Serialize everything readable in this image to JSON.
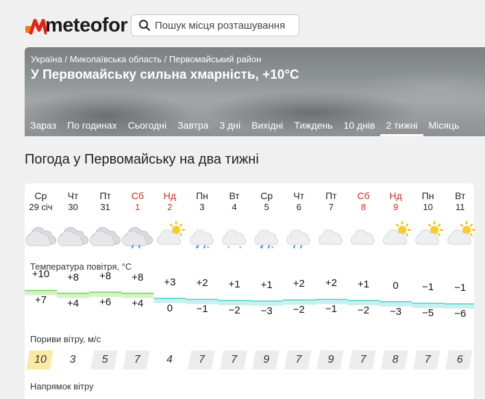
{
  "header": {
    "logo_text": "meteofor",
    "search_placeholder": "Пошук місця розташування",
    "colors": {
      "logo_orange": "#ff7a00",
      "logo_red": "#e2231a"
    }
  },
  "hero": {
    "breadcrumbs": [
      "Україна",
      "Миколаївська область",
      "Первомайський район"
    ],
    "title": "У Первомайську сильна хмарність, +10°C",
    "tabs": [
      "Зараз",
      "По годинах",
      "Сьогодні",
      "Завтра",
      "3 дні",
      "Вихідні",
      "Тиждень",
      "10 днів",
      "2 тижні",
      "Місяць"
    ],
    "active_tab": "2 тижні"
  },
  "main": {
    "title": "Погода у Первомайську на два тижні",
    "temp_label": "Температура повітря, °C",
    "gust_label": "Пориви вітру, м/с",
    "wind_dir_label": "Напрямок вітру",
    "days": [
      {
        "dow": "Ср",
        "date": "29 січ",
        "weekend": false,
        "icon": "overcast-icon",
        "max": "+10",
        "min": "+7",
        "gust": "10"
      },
      {
        "dow": "Чт",
        "date": "30",
        "weekend": false,
        "icon": "overcast-icon",
        "max": "+8",
        "min": "+4",
        "gust": "3"
      },
      {
        "dow": "Пт",
        "date": "31",
        "weekend": false,
        "icon": "overcast-icon",
        "max": "+8",
        "min": "+6",
        "gust": "5"
      },
      {
        "dow": "Сб",
        "date": "1",
        "weekend": true,
        "icon": "overcast-rain-icon",
        "max": "+8",
        "min": "+4",
        "gust": "7"
      },
      {
        "dow": "Нд",
        "date": "2",
        "weekend": true,
        "icon": "partly-cloudy-icon",
        "max": "+3",
        "min": "0",
        "gust": "4"
      },
      {
        "dow": "Пн",
        "date": "3",
        "weekend": false,
        "icon": "cloudy-sleet-icon",
        "max": "+2",
        "min": "−1",
        "gust": "7"
      },
      {
        "dow": "Вт",
        "date": "4",
        "weekend": false,
        "icon": "cloudy-snow-icon",
        "max": "+1",
        "min": "−2",
        "gust": "7"
      },
      {
        "dow": "Ср",
        "date": "5",
        "weekend": false,
        "icon": "cloudy-sleet-icon",
        "max": "+1",
        "min": "−3",
        "gust": "9"
      },
      {
        "dow": "Чт",
        "date": "6",
        "weekend": false,
        "icon": "cloudy-rain-icon",
        "max": "+2",
        "min": "−2",
        "gust": "7"
      },
      {
        "dow": "Пт",
        "date": "7",
        "weekend": false,
        "icon": "cloudy-icon",
        "max": "+2",
        "min": "−1",
        "gust": "9"
      },
      {
        "dow": "Сб",
        "date": "8",
        "weekend": true,
        "icon": "cloudy-icon",
        "max": "+1",
        "min": "−2",
        "gust": "7"
      },
      {
        "dow": "Нд",
        "date": "9",
        "weekend": true,
        "icon": "partly-cloudy-icon",
        "max": "0",
        "min": "−3",
        "gust": "8"
      },
      {
        "dow": "Пн",
        "date": "10",
        "weekend": false,
        "icon": "partly-cloudy-icon",
        "max": "−1",
        "min": "−5",
        "gust": "7"
      },
      {
        "dow": "Вт",
        "date": "11",
        "weekend": false,
        "icon": "partly-cloudy-icon",
        "max": "−1",
        "min": "−6",
        "gust": "6"
      }
    ]
  }
}
